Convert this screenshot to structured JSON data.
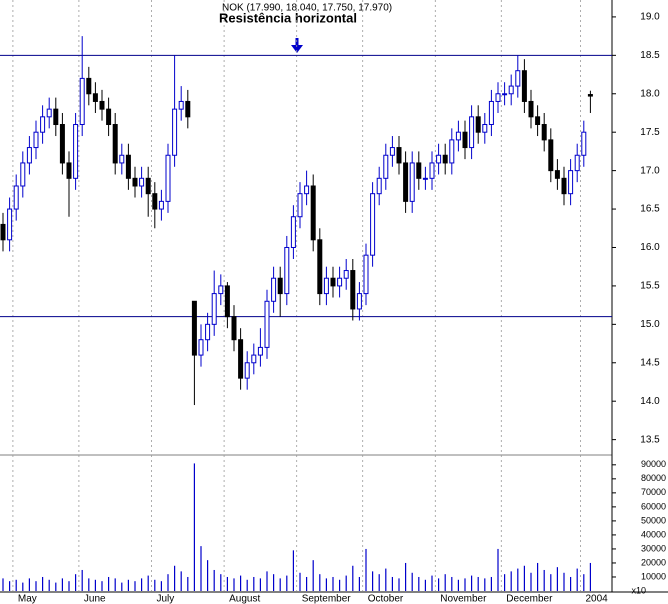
{
  "chart_data": {
    "type": "candlestick",
    "title": "NOK (17.990, 18.040, 17.750, 17.970)",
    "annotation": "Resistência horizontal",
    "volume_unit_label": "x10",
    "hlines": [
      18.5,
      15.1
    ],
    "categories": [
      null,
      null,
      "May",
      null,
      null,
      null,
      null,
      null,
      null,
      null,
      null,
      null,
      "June",
      null,
      null,
      null,
      null,
      null,
      null,
      null,
      null,
      null,
      null,
      "July",
      null,
      null,
      null,
      null,
      null,
      null,
      null,
      null,
      null,
      null,
      "August",
      null,
      null,
      null,
      null,
      null,
      null,
      null,
      null,
      null,
      null,
      "September",
      null,
      null,
      null,
      null,
      null,
      null,
      null,
      null,
      null,
      "October",
      null,
      null,
      null,
      null,
      null,
      null,
      null,
      null,
      null,
      null,
      "November",
      null,
      null,
      null,
      null,
      null,
      null,
      null,
      null,
      null,
      "December",
      null,
      null,
      null,
      null,
      null,
      null,
      null,
      null,
      null,
      null,
      null,
      "2004",
      null
    ],
    "open": [
      16.3,
      16.1,
      16.5,
      16.8,
      17.1,
      17.3,
      17.5,
      17.7,
      17.8,
      17.6,
      17.1,
      16.9,
      17.6,
      18.2,
      18.0,
      17.9,
      17.8,
      17.6,
      17.1,
      17.2,
      16.9,
      16.8,
      16.9,
      16.7,
      16.5,
      16.6,
      17.2,
      17.8,
      17.9,
      15.3,
      14.6,
      14.8,
      15.0,
      15.4,
      15.5,
      15.1,
      14.8,
      14.3,
      14.5,
      14.6,
      14.7,
      15.3,
      15.6,
      15.4,
      16.0,
      16.4,
      16.7,
      16.8,
      16.1,
      15.4,
      15.6,
      15.5,
      15.6,
      15.7,
      15.2,
      15.4,
      15.9,
      16.7,
      16.9,
      17.2,
      17.3,
      17.1,
      16.6,
      17.1,
      16.9,
      16.9,
      17.1,
      17.2,
      17.1,
      17.4,
      17.5,
      17.3,
      17.7,
      17.5,
      17.6,
      17.9,
      18.0,
      18.0,
      18.1,
      18.3,
      17.9,
      17.7,
      17.6,
      17.4,
      17.0,
      16.9,
      16.7,
      17.0,
      17.2,
      17.99
    ],
    "high": [
      16.45,
      16.65,
      16.95,
      17.25,
      17.45,
      17.65,
      17.85,
      17.95,
      17.95,
      17.75,
      17.25,
      17.75,
      18.75,
      18.35,
      18.15,
      18.05,
      17.95,
      17.75,
      17.35,
      17.35,
      17.05,
      17.05,
      17.05,
      16.85,
      16.75,
      17.35,
      18.5,
      18.1,
      18.05,
      15.3,
      15.0,
      15.15,
      15.7,
      15.65,
      15.55,
      15.25,
      14.95,
      14.65,
      14.75,
      14.95,
      15.45,
      15.75,
      15.75,
      16.15,
      16.55,
      16.85,
      17.0,
      16.95,
      16.25,
      15.75,
      15.75,
      15.75,
      15.85,
      15.85,
      15.55,
      16.05,
      16.85,
      17.05,
      17.35,
      17.45,
      17.45,
      17.25,
      17.25,
      17.25,
      17.05,
      17.25,
      17.35,
      17.35,
      17.55,
      17.65,
      17.65,
      17.85,
      17.85,
      17.75,
      18.05,
      18.15,
      18.15,
      18.25,
      18.5,
      18.45,
      18.05,
      17.85,
      17.75,
      17.55,
      17.15,
      17.05,
      17.15,
      17.35,
      17.65,
      18.04
    ],
    "low": [
      15.95,
      15.95,
      16.35,
      16.65,
      16.95,
      17.15,
      17.35,
      17.55,
      17.45,
      16.95,
      16.4,
      16.75,
      17.45,
      17.85,
      17.75,
      17.65,
      17.45,
      16.95,
      16.95,
      16.75,
      16.65,
      16.65,
      16.4,
      16.25,
      16.35,
      16.45,
      17.05,
      17.65,
      17.55,
      13.95,
      14.45,
      14.65,
      14.85,
      15.25,
      14.95,
      14.65,
      14.15,
      14.15,
      14.35,
      14.45,
      14.55,
      15.15,
      15.1,
      15.25,
      15.85,
      16.25,
      16.55,
      15.95,
      15.25,
      15.25,
      15.35,
      15.35,
      15.45,
      15.05,
      15.05,
      15.25,
      15.75,
      16.55,
      16.75,
      17.05,
      16.95,
      16.45,
      16.45,
      16.75,
      16.75,
      16.75,
      16.95,
      16.95,
      16.95,
      17.25,
      17.15,
      17.15,
      17.35,
      17.35,
      17.45,
      17.75,
      17.85,
      17.85,
      17.95,
      17.75,
      17.55,
      17.45,
      17.25,
      16.85,
      16.75,
      16.55,
      16.55,
      16.85,
      17.05,
      17.75
    ],
    "close": [
      16.1,
      16.5,
      16.8,
      17.1,
      17.3,
      17.5,
      17.7,
      17.8,
      17.6,
      17.1,
      16.9,
      17.6,
      18.2,
      18.0,
      17.9,
      17.8,
      17.6,
      17.1,
      17.2,
      16.9,
      16.8,
      16.9,
      16.7,
      16.5,
      16.6,
      17.2,
      17.8,
      17.9,
      17.7,
      14.6,
      14.8,
      15.0,
      15.4,
      15.5,
      15.1,
      14.8,
      14.3,
      14.5,
      14.6,
      14.7,
      15.3,
      15.6,
      15.4,
      16.0,
      16.4,
      16.7,
      16.8,
      16.1,
      15.4,
      15.6,
      15.5,
      15.6,
      15.7,
      15.2,
      15.4,
      15.9,
      16.7,
      16.9,
      17.2,
      17.3,
      17.1,
      16.6,
      17.1,
      16.9,
      16.9,
      17.1,
      17.2,
      17.1,
      17.4,
      17.5,
      17.3,
      17.7,
      17.5,
      17.6,
      17.9,
      18.0,
      18.0,
      18.1,
      18.3,
      17.9,
      17.7,
      17.6,
      17.4,
      17.0,
      16.9,
      16.7,
      17.0,
      17.2,
      17.5,
      17.97
    ],
    "volume": [
      9000,
      7000,
      8000,
      6000,
      9000,
      7000,
      10000,
      8000,
      6000,
      9000,
      7000,
      12000,
      15000,
      9000,
      8000,
      7000,
      10000,
      9000,
      6000,
      8000,
      7000,
      9000,
      11000,
      8000,
      7000,
      12000,
      18000,
      14000,
      10000,
      91000,
      32000,
      22000,
      15000,
      12000,
      10000,
      9000,
      11000,
      8000,
      10000,
      9000,
      14000,
      12000,
      9000,
      11000,
      29000,
      13000,
      10000,
      22000,
      12000,
      9000,
      10000,
      8000,
      11000,
      18000,
      10000,
      30000,
      14000,
      12000,
      16000,
      10000,
      9000,
      20000,
      13000,
      10000,
      8000,
      11000,
      9000,
      12000,
      10000,
      8000,
      9000,
      11000,
      10000,
      9000,
      10000,
      30000,
      12000,
      14000,
      16000,
      18000,
      13000,
      20000,
      15000,
      12000,
      17000,
      13000,
      10000,
      16000,
      12000,
      20000
    ],
    "up_color": "#0000cc",
    "down_color": "#000000",
    "line_color": "#00008b",
    "annotation_color": "#0000cc",
    "ylim": [
      13.3,
      19.22
    ],
    "yticks": [
      13.5,
      {
        "value": 14,
        "label": "14.0"
      },
      14.5,
      {
        "value": 15,
        "label": "15.0"
      },
      15.5,
      {
        "value": 16,
        "label": "16.0"
      },
      16.5,
      {
        "value": 17,
        "label": "17.0"
      },
      17.5,
      {
        "value": 18,
        "label": "18.0"
      },
      18.5,
      {
        "value": 19,
        "label": "19.0"
      }
    ],
    "y2lim": [
      0,
      97000
    ],
    "y2ticks": [
      10000,
      20000,
      30000,
      40000,
      50000,
      60000,
      70000,
      80000,
      90000
    ]
  }
}
